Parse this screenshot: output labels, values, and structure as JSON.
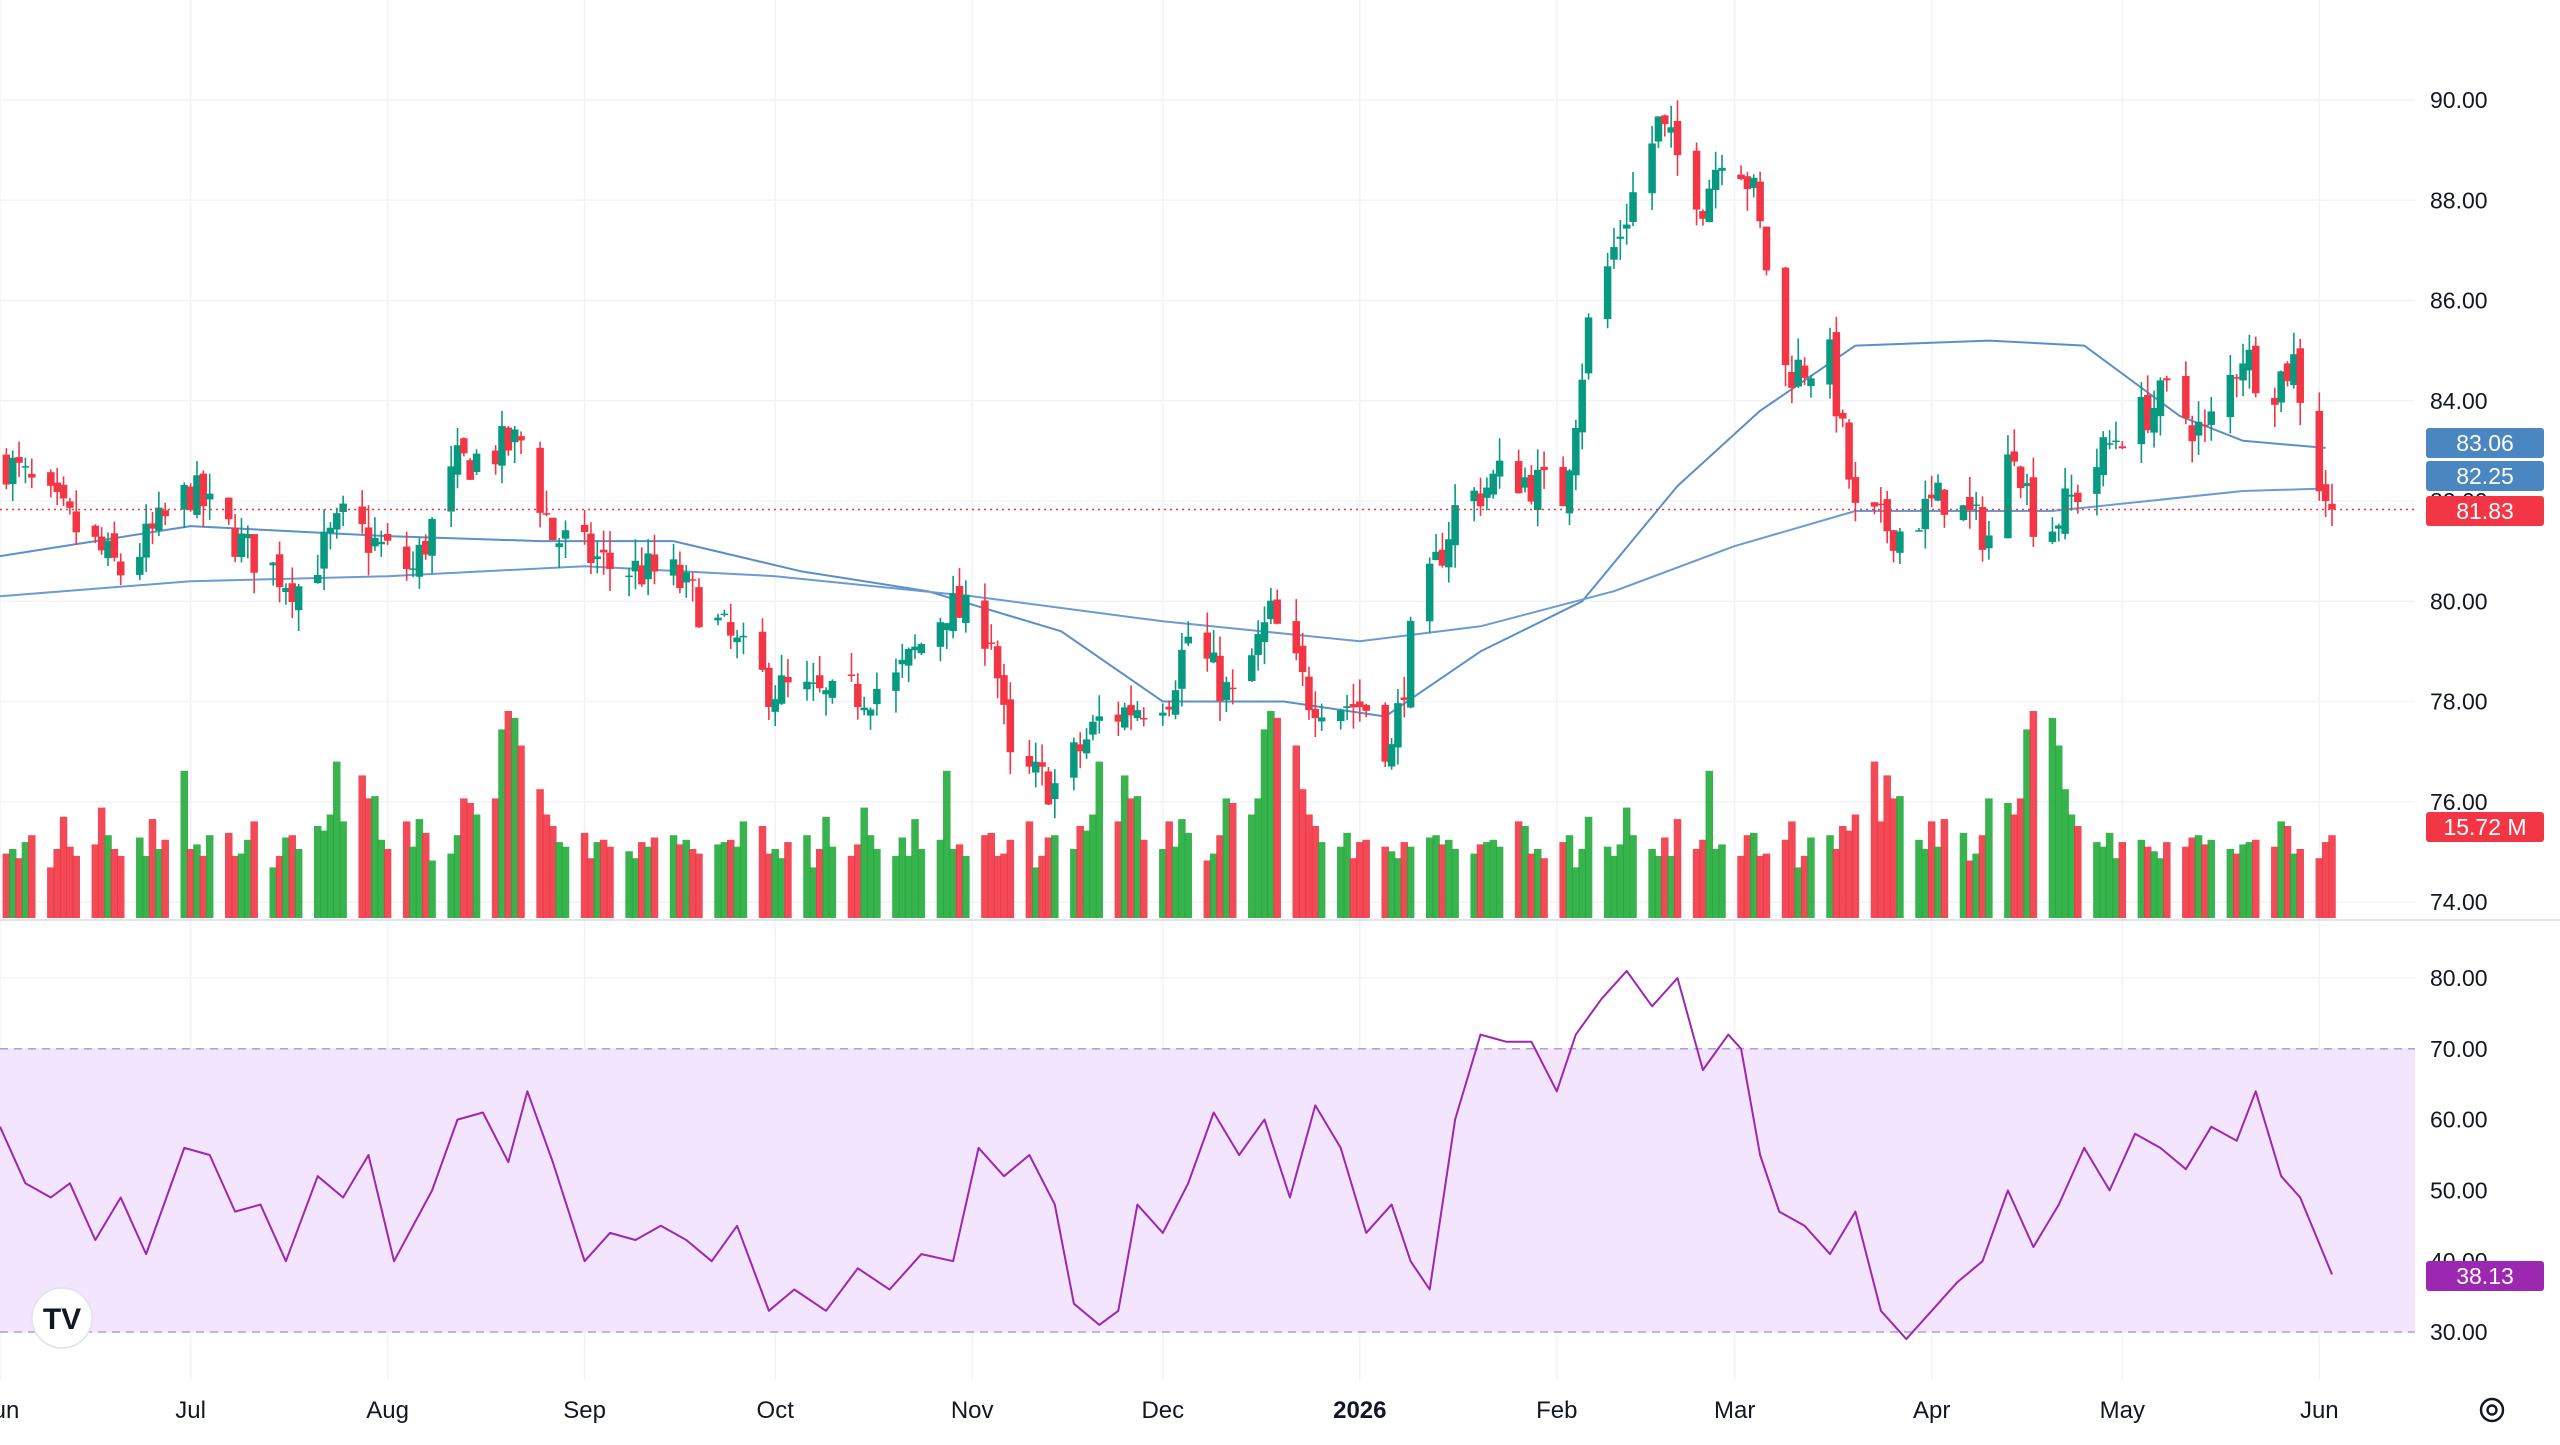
{
  "colors": {
    "up": "#089981",
    "down": "#f23645",
    "volume_up": "#22ab3b",
    "volume_down": "#f23645",
    "ma_fast": "#5b8fc7",
    "ma_slow": "#6b9bd1",
    "rsi_line": "#9c27b0",
    "rsi_band": "#f3e5fd",
    "grid": "#f0f3fa",
    "axis_text": "#131722"
  },
  "price_axis": {
    "ticks": [
      "90.00",
      "88.00",
      "86.00",
      "84.00",
      "82.00",
      "80.00",
      "78.00",
      "76.00",
      "74.00"
    ],
    "range": [
      73.8,
      91.8
    ]
  },
  "rsi_axis": {
    "ticks": [
      "80.00",
      "70.00",
      "60.00",
      "50.00",
      "40.00",
      "30.00"
    ],
    "range": [
      27.5,
      85
    ],
    "band": [
      30,
      70
    ]
  },
  "time_axis": {
    "labels": [
      "Jun",
      "Jul",
      "Aug",
      "Sep",
      "Oct",
      "Nov",
      "Dec",
      "2026",
      "Feb",
      "Mar",
      "Apr",
      "May",
      "Jun"
    ],
    "bold_label": "2026"
  },
  "badges": {
    "ma_fast": "83.06",
    "ma_slow": "82.25",
    "last_price": "81.83",
    "volume": "15.72 M",
    "rsi": "38.13"
  },
  "logo_text": "TV",
  "settings_icon": "gear-icon",
  "chart_data": [
    {
      "type": "candlestick",
      "title": "",
      "x_range": [
        "2025-06-01",
        "2026-06-03"
      ],
      "close_path": [
        [
          "2025-06-01",
          82.9
        ],
        [
          "2025-06-10",
          81.8
        ],
        [
          "2025-06-20",
          80.6
        ],
        [
          "2025-07-01",
          82.2
        ],
        [
          "2025-07-10",
          81.0
        ],
        [
          "2025-07-18",
          80.3
        ],
        [
          "2025-07-25",
          81.6
        ],
        [
          "2025-08-05",
          80.6
        ],
        [
          "2025-08-12",
          82.7
        ],
        [
          "2025-08-22",
          83.2
        ],
        [
          "2025-08-27",
          81.3
        ],
        [
          "2025-09-05",
          80.7
        ],
        [
          "2025-09-15",
          80.5
        ],
        [
          "2025-09-22",
          79.5
        ],
        [
          "2025-09-30",
          78.3
        ],
        [
          "2025-10-10",
          78.0
        ],
        [
          "2025-10-20",
          78.4
        ],
        [
          "2025-10-28",
          79.9
        ],
        [
          "2025-11-04",
          79.4
        ],
        [
          "2025-11-07",
          76.7
        ],
        [
          "2025-11-14",
          76.3
        ],
        [
          "2025-11-21",
          77.6
        ],
        [
          "2025-12-02",
          78.2
        ],
        [
          "2025-12-05",
          79.3
        ],
        [
          "2025-12-12",
          78.0
        ],
        [
          "2025-12-18",
          79.7
        ],
        [
          "2025-12-24",
          78.1
        ],
        [
          "2026-01-02",
          77.9
        ],
        [
          "2026-01-06",
          77.0
        ],
        [
          "2026-01-09",
          79.2
        ],
        [
          "2026-01-16",
          81.8
        ],
        [
          "2026-01-24",
          82.6
        ],
        [
          "2026-02-02",
          82.1
        ],
        [
          "2026-02-06",
          85.5
        ],
        [
          "2026-02-11",
          87.4
        ],
        [
          "2026-02-17",
          89.5
        ],
        [
          "2026-02-24",
          88.0
        ],
        [
          "2026-02-28",
          89.4
        ],
        [
          "2026-03-04",
          88.1
        ],
        [
          "2026-03-09",
          84.6
        ],
        [
          "2026-03-16",
          84.8
        ],
        [
          "2026-03-20",
          81.7
        ],
        [
          "2026-03-27",
          81.4
        ],
        [
          "2026-04-03",
          82.1
        ],
        [
          "2026-04-10",
          81.3
        ],
        [
          "2026-04-14",
          83.2
        ],
        [
          "2026-04-18",
          81.2
        ],
        [
          "2026-04-24",
          82.2
        ],
        [
          "2026-04-30",
          83.3
        ],
        [
          "2026-05-08",
          84.1
        ],
        [
          "2026-05-14",
          83.3
        ],
        [
          "2026-05-20",
          85.0
        ],
        [
          "2026-05-24",
          84.2
        ],
        [
          "2026-05-28",
          84.8
        ],
        [
          "2026-06-01",
          82.4
        ],
        [
          "2026-06-03",
          81.83
        ]
      ],
      "ma_fast_path": [
        [
          "2025-06-01",
          80.9
        ],
        [
          "2025-07-01",
          81.5
        ],
        [
          "2025-08-01",
          81.3
        ],
        [
          "2025-08-25",
          81.2
        ],
        [
          "2025-09-15",
          81.2
        ],
        [
          "2025-10-05",
          80.6
        ],
        [
          "2025-10-25",
          80.2
        ],
        [
          "2025-11-15",
          79.4
        ],
        [
          "2025-12-01",
          78.0
        ],
        [
          "2025-12-20",
          78.0
        ],
        [
          "2026-01-05",
          77.7
        ],
        [
          "2026-01-20",
          79.0
        ],
        [
          "2026-02-05",
          80.0
        ],
        [
          "2026-02-20",
          82.3
        ],
        [
          "2026-03-05",
          83.8
        ],
        [
          "2026-03-20",
          85.1
        ],
        [
          "2026-04-10",
          85.2
        ],
        [
          "2026-04-25",
          85.1
        ],
        [
          "2026-05-10",
          83.7
        ],
        [
          "2026-05-20",
          83.2
        ],
        [
          "2026-06-02",
          83.06
        ]
      ],
      "ma_slow_path": [
        [
          "2025-06-01",
          80.1
        ],
        [
          "2025-07-01",
          80.4
        ],
        [
          "2025-08-01",
          80.5
        ],
        [
          "2025-09-01",
          80.7
        ],
        [
          "2025-10-01",
          80.5
        ],
        [
          "2025-11-01",
          80.1
        ],
        [
          "2025-12-01",
          79.6
        ],
        [
          "2026-01-01",
          79.2
        ],
        [
          "2026-01-20",
          79.5
        ],
        [
          "2026-02-10",
          80.2
        ],
        [
          "2026-03-01",
          81.1
        ],
        [
          "2026-03-20",
          81.8
        ],
        [
          "2026-04-20",
          81.8
        ],
        [
          "2026-05-20",
          82.2
        ],
        [
          "2026-06-02",
          82.25
        ]
      ],
      "last_price": 81.83
    },
    {
      "type": "bar",
      "name": "Volume",
      "last_value": "15.72 M",
      "values_relative": [
        0.28,
        0.3,
        0.26,
        0.33,
        0.36,
        0.22,
        0.3,
        0.44,
        0.31,
        0.27,
        0.32,
        0.48,
        0.36,
        0.3,
        0.27,
        0.35,
        0.27,
        0.43,
        0.3,
        0.34,
        0.64,
        0.3,
        0.32,
        0.27,
        0.36,
        0.37,
        0.27,
        0.28,
        0.34,
        0.42,
        0.22,
        0.27,
        0.35,
        0.36,
        0.3,
        0.4,
        0.38,
        0.45,
        0.68,
        0.42,
        0.62,
        0.52,
        0.53,
        0.34,
        0.3,
        0.42,
        0.31,
        0.43,
        0.37,
        0.25,
        0.28,
        0.36,
        0.52,
        0.5,
        0.45,
        0.52,
        0.82,
        0.9,
        0.87,
        0.75,
        0.56,
        0.45,
        0.4,
        0.33,
        0.31,
        0.37,
        0.26,
        0.33,
        0.34,
        0.31,
        0.29,
        0.26,
        0.33,
        0.31,
        0.35,
        0.36,
        0.32,
        0.34,
        0.3,
        0.28,
        0.32,
        0.33,
        0.34,
        0.31,
        0.42,
        0.4
      ]
    },
    {
      "type": "line",
      "name": "RSI",
      "ylim": [
        27.5,
        85
      ],
      "points": [
        [
          "2025-06-01",
          59
        ],
        [
          "2025-06-05",
          51
        ],
        [
          "2025-06-09",
          49
        ],
        [
          "2025-06-12",
          51
        ],
        [
          "2025-06-16",
          43
        ],
        [
          "2025-06-20",
          49
        ],
        [
          "2025-06-24",
          41
        ],
        [
          "2025-06-30",
          56
        ],
        [
          "2025-07-04",
          55
        ],
        [
          "2025-07-08",
          47
        ],
        [
          "2025-07-12",
          48
        ],
        [
          "2025-07-16",
          40
        ],
        [
          "2025-07-21",
          52
        ],
        [
          "2025-07-25",
          49
        ],
        [
          "2025-07-29",
          55
        ],
        [
          "2025-08-02",
          40
        ],
        [
          "2025-08-08",
          50
        ],
        [
          "2025-08-12",
          60
        ],
        [
          "2025-08-16",
          61
        ],
        [
          "2025-08-20",
          54
        ],
        [
          "2025-08-23",
          64
        ],
        [
          "2025-08-27",
          54
        ],
        [
          "2025-09-01",
          40
        ],
        [
          "2025-09-05",
          44
        ],
        [
          "2025-09-09",
          43
        ],
        [
          "2025-09-13",
          45
        ],
        [
          "2025-09-17",
          43
        ],
        [
          "2025-09-21",
          40
        ],
        [
          "2025-09-25",
          45
        ],
        [
          "2025-09-30",
          33
        ],
        [
          "2025-10-04",
          36
        ],
        [
          "2025-10-09",
          33
        ],
        [
          "2025-10-14",
          39
        ],
        [
          "2025-10-19",
          36
        ],
        [
          "2025-10-24",
          41
        ],
        [
          "2025-10-29",
          40
        ],
        [
          "2025-11-02",
          56
        ],
        [
          "2025-11-06",
          52
        ],
        [
          "2025-11-10",
          55
        ],
        [
          "2025-11-14",
          48
        ],
        [
          "2025-11-17",
          34
        ],
        [
          "2025-11-21",
          31
        ],
        [
          "2025-11-24",
          33
        ],
        [
          "2025-11-27",
          48
        ],
        [
          "2025-12-01",
          44
        ],
        [
          "2025-12-05",
          51
        ],
        [
          "2025-12-09",
          61
        ],
        [
          "2025-12-13",
          55
        ],
        [
          "2025-12-17",
          60
        ],
        [
          "2025-12-21",
          49
        ],
        [
          "2025-12-25",
          62
        ],
        [
          "2025-12-29",
          56
        ],
        [
          "2026-01-02",
          44
        ],
        [
          "2026-01-06",
          48
        ],
        [
          "2026-01-09",
          40
        ],
        [
          "2026-01-12",
          36
        ],
        [
          "2026-01-16",
          60
        ],
        [
          "2026-01-20",
          72
        ],
        [
          "2026-01-24",
          71
        ],
        [
          "2026-01-28",
          71
        ],
        [
          "2026-02-01",
          64
        ],
        [
          "2026-02-04",
          72
        ],
        [
          "2026-02-08",
          77
        ],
        [
          "2026-02-12",
          81
        ],
        [
          "2026-02-16",
          76
        ],
        [
          "2026-02-20",
          80
        ],
        [
          "2026-02-24",
          67
        ],
        [
          "2026-02-28",
          72
        ],
        [
          "2026-03-02",
          70
        ],
        [
          "2026-03-05",
          55
        ],
        [
          "2026-03-08",
          47
        ],
        [
          "2026-03-12",
          45
        ],
        [
          "2026-03-16",
          41
        ],
        [
          "2026-03-20",
          47
        ],
        [
          "2026-03-24",
          33
        ],
        [
          "2026-03-28",
          29
        ],
        [
          "2026-04-01",
          33
        ],
        [
          "2026-04-05",
          37
        ],
        [
          "2026-04-09",
          40
        ],
        [
          "2026-04-13",
          50
        ],
        [
          "2026-04-17",
          42
        ],
        [
          "2026-04-21",
          48
        ],
        [
          "2026-04-25",
          56
        ],
        [
          "2026-04-29",
          50
        ],
        [
          "2026-05-03",
          58
        ],
        [
          "2026-05-07",
          56
        ],
        [
          "2026-05-11",
          53
        ],
        [
          "2026-05-15",
          59
        ],
        [
          "2026-05-19",
          57
        ],
        [
          "2026-05-22",
          64
        ],
        [
          "2026-05-26",
          52
        ],
        [
          "2026-05-29",
          49
        ],
        [
          "2026-06-03",
          38.13
        ]
      ],
      "overbought": 70,
      "oversold": 30
    }
  ]
}
